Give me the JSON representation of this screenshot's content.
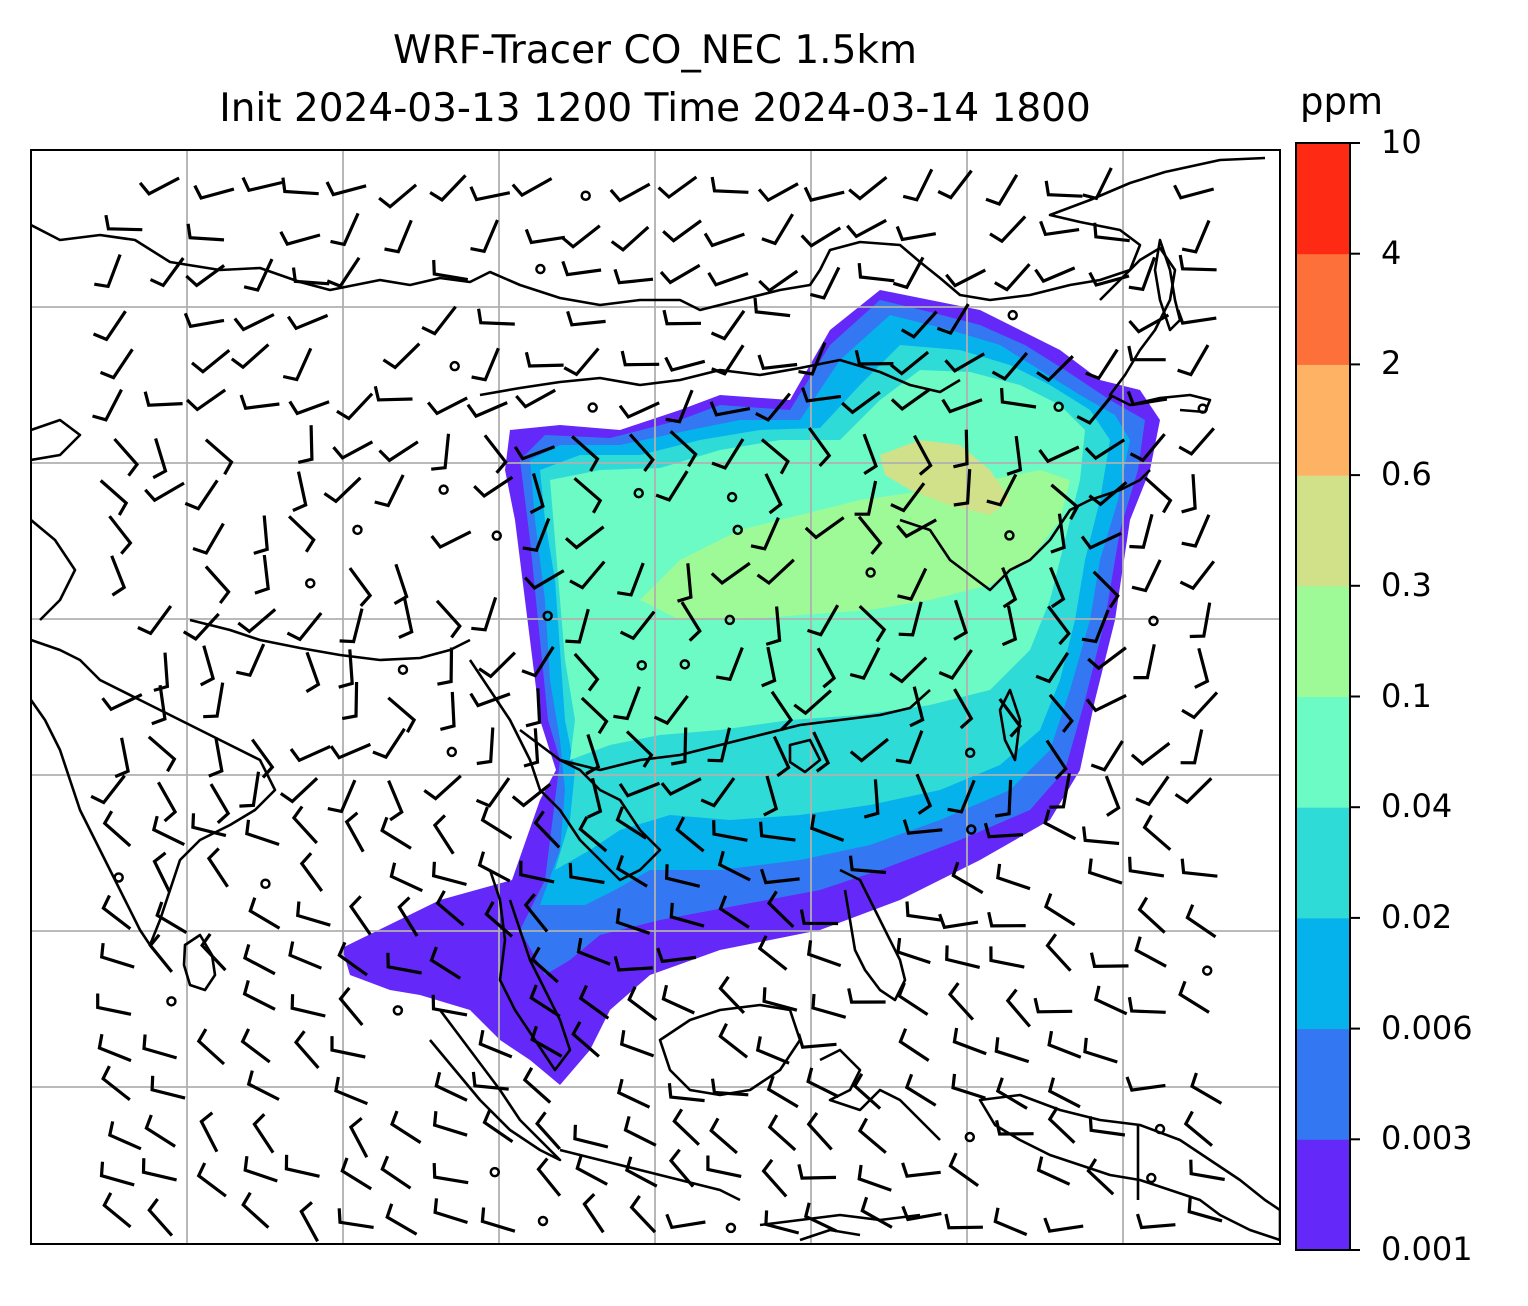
{
  "title": {
    "line1": "WRF-Tracer CO_NEC 1.5km",
    "line2": "Init 2024-03-13 1200 Time 2024-03-14 1800"
  },
  "colorbar": {
    "unit": "ppm",
    "levels": [
      "0.001",
      "0.003",
      "0.006",
      "0.02",
      "0.04",
      "0.1",
      "0.3",
      "0.6",
      "2",
      "4",
      "10"
    ],
    "colors": [
      "#6428f8",
      "#3477f2",
      "#06b2ec",
      "#2edbd7",
      "#6cfac5",
      "#9efa97",
      "#d1e18a",
      "#fdb264",
      "#fd7039",
      "#fe2a14"
    ]
  },
  "map_style": {
    "plume_colors": [
      "#6428f8",
      "#3477f2",
      "#06b2ec",
      "#2edbd7",
      "#6cfac5",
      "#9efa97",
      "#d1e18a"
    ],
    "coast_color": "#000000",
    "grid_color": "#b0b0b0",
    "barb_color": "#000000"
  }
}
